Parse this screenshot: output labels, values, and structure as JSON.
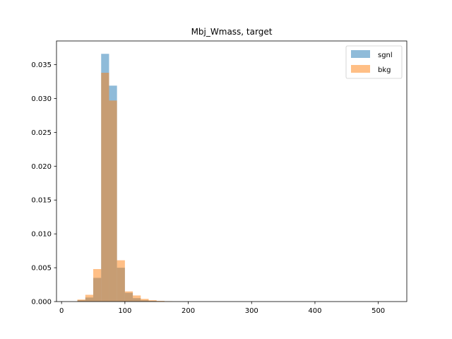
{
  "chart_data": {
    "type": "histogram",
    "title": "Mbj_Wmass, target",
    "xlabel": "",
    "ylabel": "",
    "xlim": [
      -8,
      545
    ],
    "ylim": [
      0,
      0.0385
    ],
    "x_ticks": [
      0,
      100,
      200,
      300,
      400,
      500
    ],
    "y_ticks": [
      0.0,
      0.005,
      0.01,
      0.015,
      0.02,
      0.025,
      0.03,
      0.035
    ],
    "y_tick_labels": [
      "0.000",
      "0.005",
      "0.010",
      "0.015",
      "0.020",
      "0.025",
      "0.030",
      "0.035"
    ],
    "x_tick_labels": [
      "0",
      "100",
      "200",
      "300",
      "400",
      "500"
    ],
    "bin_edges": [
      25,
      37.5,
      50,
      62.5,
      75,
      87.5,
      100,
      112.5,
      125,
      137.5,
      150,
      162.5,
      175,
      187.5
    ],
    "series": [
      {
        "name": "sgnl",
        "color": "#1f77b4",
        "alpha": 0.5,
        "values": [
          0.0002,
          0.0006,
          0.0035,
          0.0366,
          0.0319,
          0.005,
          0.0013,
          0.0005,
          0.0002,
          0.0001,
          5e-05,
          2e-05,
          1e-05
        ]
      },
      {
        "name": "bkg",
        "color": "#ff7f0e",
        "alpha": 0.5,
        "values": [
          0.0003,
          0.001,
          0.0048,
          0.0338,
          0.0297,
          0.0061,
          0.0015,
          0.0009,
          0.0004,
          0.0002,
          0.0001,
          5e-05,
          2e-05
        ]
      }
    ],
    "legend_position": "upper-right",
    "grid": false
  }
}
